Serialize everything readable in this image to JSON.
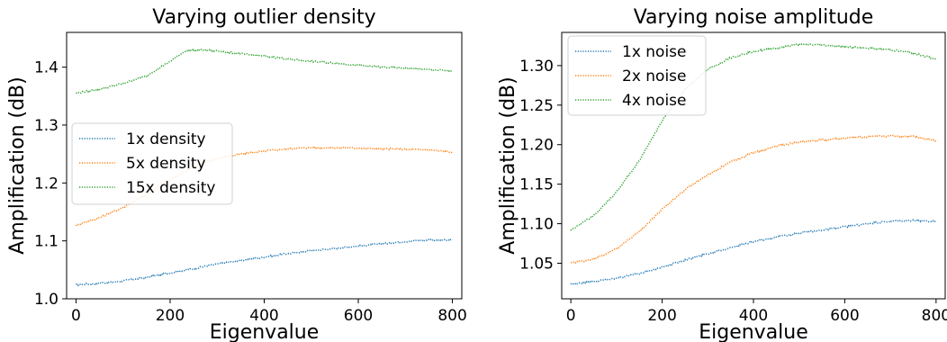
{
  "chart_data": [
    {
      "type": "line",
      "title": "Varying outlier density",
      "xlabel": "Eigenvalue",
      "ylabel": "Amplification (dB)",
      "xlim": [
        -20,
        820
      ],
      "ylim": [
        1.0,
        1.46
      ],
      "xticks": [
        0,
        200,
        400,
        600,
        800
      ],
      "xtick_labels": [
        "0",
        "200",
        "400",
        "600",
        "800"
      ],
      "yticks": [
        1.0,
        1.1,
        1.2,
        1.3,
        1.4
      ],
      "ytick_labels": [
        "1.0",
        "1.1",
        "1.2",
        "1.3",
        "1.4"
      ],
      "grid": false,
      "legend_position": "center-left",
      "series": [
        {
          "name": "1x density",
          "color": "#1f77b4",
          "x": [
            0,
            50,
            100,
            150,
            200,
            250,
            300,
            350,
            400,
            450,
            500,
            550,
            600,
            650,
            700,
            750,
            800
          ],
          "y": [
            1.024,
            1.027,
            1.031,
            1.037,
            1.045,
            1.052,
            1.06,
            1.066,
            1.072,
            1.078,
            1.083,
            1.087,
            1.091,
            1.095,
            1.099,
            1.102,
            1.101
          ]
        },
        {
          "name": "5x density",
          "color": "#ff7f0e",
          "x": [
            0,
            50,
            100,
            150,
            200,
            250,
            300,
            350,
            400,
            450,
            500,
            550,
            600,
            650,
            700,
            750,
            800
          ],
          "y": [
            1.127,
            1.14,
            1.158,
            1.18,
            1.205,
            1.228,
            1.242,
            1.25,
            1.255,
            1.259,
            1.261,
            1.261,
            1.26,
            1.259,
            1.258,
            1.257,
            1.253
          ]
        },
        {
          "name": "15x density",
          "color": "#2ca02c",
          "x": [
            0,
            50,
            100,
            150,
            200,
            230,
            260,
            300,
            350,
            400,
            450,
            500,
            550,
            600,
            650,
            700,
            750,
            800
          ],
          "y": [
            1.355,
            1.362,
            1.372,
            1.385,
            1.41,
            1.427,
            1.43,
            1.428,
            1.423,
            1.419,
            1.414,
            1.41,
            1.407,
            1.403,
            1.4,
            1.398,
            1.396,
            1.393
          ]
        }
      ]
    },
    {
      "type": "line",
      "title": "Varying noise amplitude",
      "xlabel": "Eigenvalue",
      "ylabel": "Amplification (dB)",
      "xlim": [
        -20,
        820
      ],
      "ylim": [
        1.005,
        1.342
      ],
      "xticks": [
        0,
        200,
        400,
        600,
        800
      ],
      "xtick_labels": [
        "0",
        "200",
        "400",
        "600",
        "800"
      ],
      "yticks": [
        1.05,
        1.1,
        1.15,
        1.2,
        1.25,
        1.3
      ],
      "ytick_labels": [
        "1.05",
        "1.10",
        "1.15",
        "1.20",
        "1.25",
        "1.30"
      ],
      "grid": false,
      "legend_position": "top-left",
      "series": [
        {
          "name": "1x noise",
          "color": "#1f77b4",
          "x": [
            0,
            50,
            100,
            150,
            200,
            250,
            300,
            350,
            400,
            450,
            500,
            550,
            600,
            650,
            700,
            750,
            800
          ],
          "y": [
            1.024,
            1.027,
            1.031,
            1.037,
            1.045,
            1.054,
            1.062,
            1.07,
            1.077,
            1.083,
            1.088,
            1.092,
            1.096,
            1.1,
            1.103,
            1.104,
            1.103
          ]
        },
        {
          "name": "2x noise",
          "color": "#ff7f0e",
          "x": [
            0,
            50,
            100,
            150,
            200,
            250,
            300,
            350,
            400,
            450,
            500,
            550,
            600,
            650,
            700,
            750,
            800
          ],
          "y": [
            1.05,
            1.055,
            1.068,
            1.09,
            1.118,
            1.143,
            1.162,
            1.178,
            1.19,
            1.198,
            1.203,
            1.206,
            1.208,
            1.21,
            1.211,
            1.21,
            1.205
          ]
        },
        {
          "name": "4x noise",
          "color": "#2ca02c",
          "x": [
            0,
            50,
            100,
            150,
            200,
            250,
            300,
            350,
            400,
            450,
            500,
            550,
            600,
            650,
            700,
            750,
            800
          ],
          "y": [
            1.092,
            1.11,
            1.14,
            1.18,
            1.23,
            1.27,
            1.295,
            1.31,
            1.318,
            1.322,
            1.327,
            1.326,
            1.324,
            1.322,
            1.32,
            1.316,
            1.308
          ]
        }
      ]
    }
  ]
}
